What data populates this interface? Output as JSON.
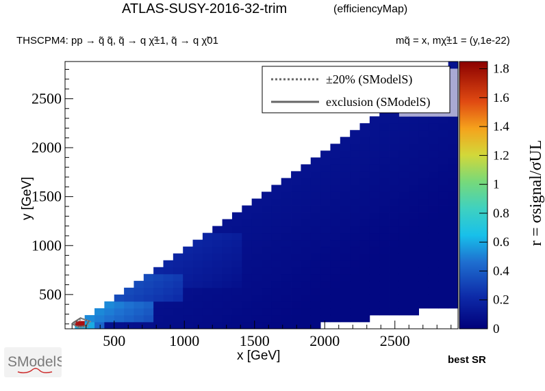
{
  "header": {
    "title": "ATLAS-SUSY-2016-32-trim",
    "subtitle": "(efficiencyMap)",
    "process": "THSCPM4: pp → q̃ q̃, q̃ → q χ̃±1, q̃ → q χ̃01",
    "masses": "mq̃ = x, mχ̃±1 = (y,1e-22)"
  },
  "footer": {
    "best_sr": "best SR"
  },
  "logo": {
    "text": "SModelS"
  },
  "chart_data": {
    "type": "heatmap",
    "xlabel": "x [GeV]",
    "ylabel": "y [GeV]",
    "zlabel": "r = σsignal/σUL",
    "xlim": [
      150,
      2950
    ],
    "ylim": [
      150,
      2880
    ],
    "zlim": [
      0,
      1.85
    ],
    "xticks": [
      "500",
      "1000",
      "1500",
      "2000",
      "2500"
    ],
    "yticks": [
      "500",
      "1000",
      "1500",
      "2000",
      "2500"
    ],
    "zticks": [
      "0",
      "0.2",
      "0.4",
      "0.6",
      "0.8",
      "1",
      "1.2",
      "1.4",
      "1.6",
      "1.8"
    ],
    "cell_size_gev": 70,
    "allowed_region": "y <= x - 50 for x <= 1800; y >= 320 for x > 1800",
    "bands": [
      {
        "y_min": 150,
        "y_max": 250,
        "x_min": 150,
        "x_max": 420,
        "r": 0.5
      },
      {
        "y_min": 250,
        "y_max": 460,
        "x_min": 300,
        "x_max": 750,
        "r": 0.55
      },
      {
        "y_min": 400,
        "y_max": 700,
        "x_min": 500,
        "x_max": 1000,
        "r": 0.35
      },
      {
        "y_min": 600,
        "y_max": 1100,
        "x_min": 800,
        "x_max": 1400,
        "r": 0.2
      }
    ],
    "peak_region": {
      "x": [
        200,
        330
      ],
      "y": [
        150,
        250
      ],
      "r": 1.8
    },
    "upper_right_region": {
      "x_min": 2500,
      "y_min": 2300,
      "color": "#a9a9d3"
    },
    "exclusion_contour_sms": {
      "x": [
        210,
        260,
        320,
        300,
        240,
        200
      ],
      "y": [
        215,
        260,
        230,
        180,
        170,
        200
      ]
    },
    "legend": {
      "placement": "top-right",
      "entries": [
        {
          "label": "±20% (SModelS)",
          "style": "dotted"
        },
        {
          "label": "exclusion (SModelS)",
          "style": "solid"
        }
      ]
    },
    "colors": {
      "excluded_dot": "#aa1111",
      "contour": "#666666",
      "legend_box": "#ffffff"
    }
  }
}
